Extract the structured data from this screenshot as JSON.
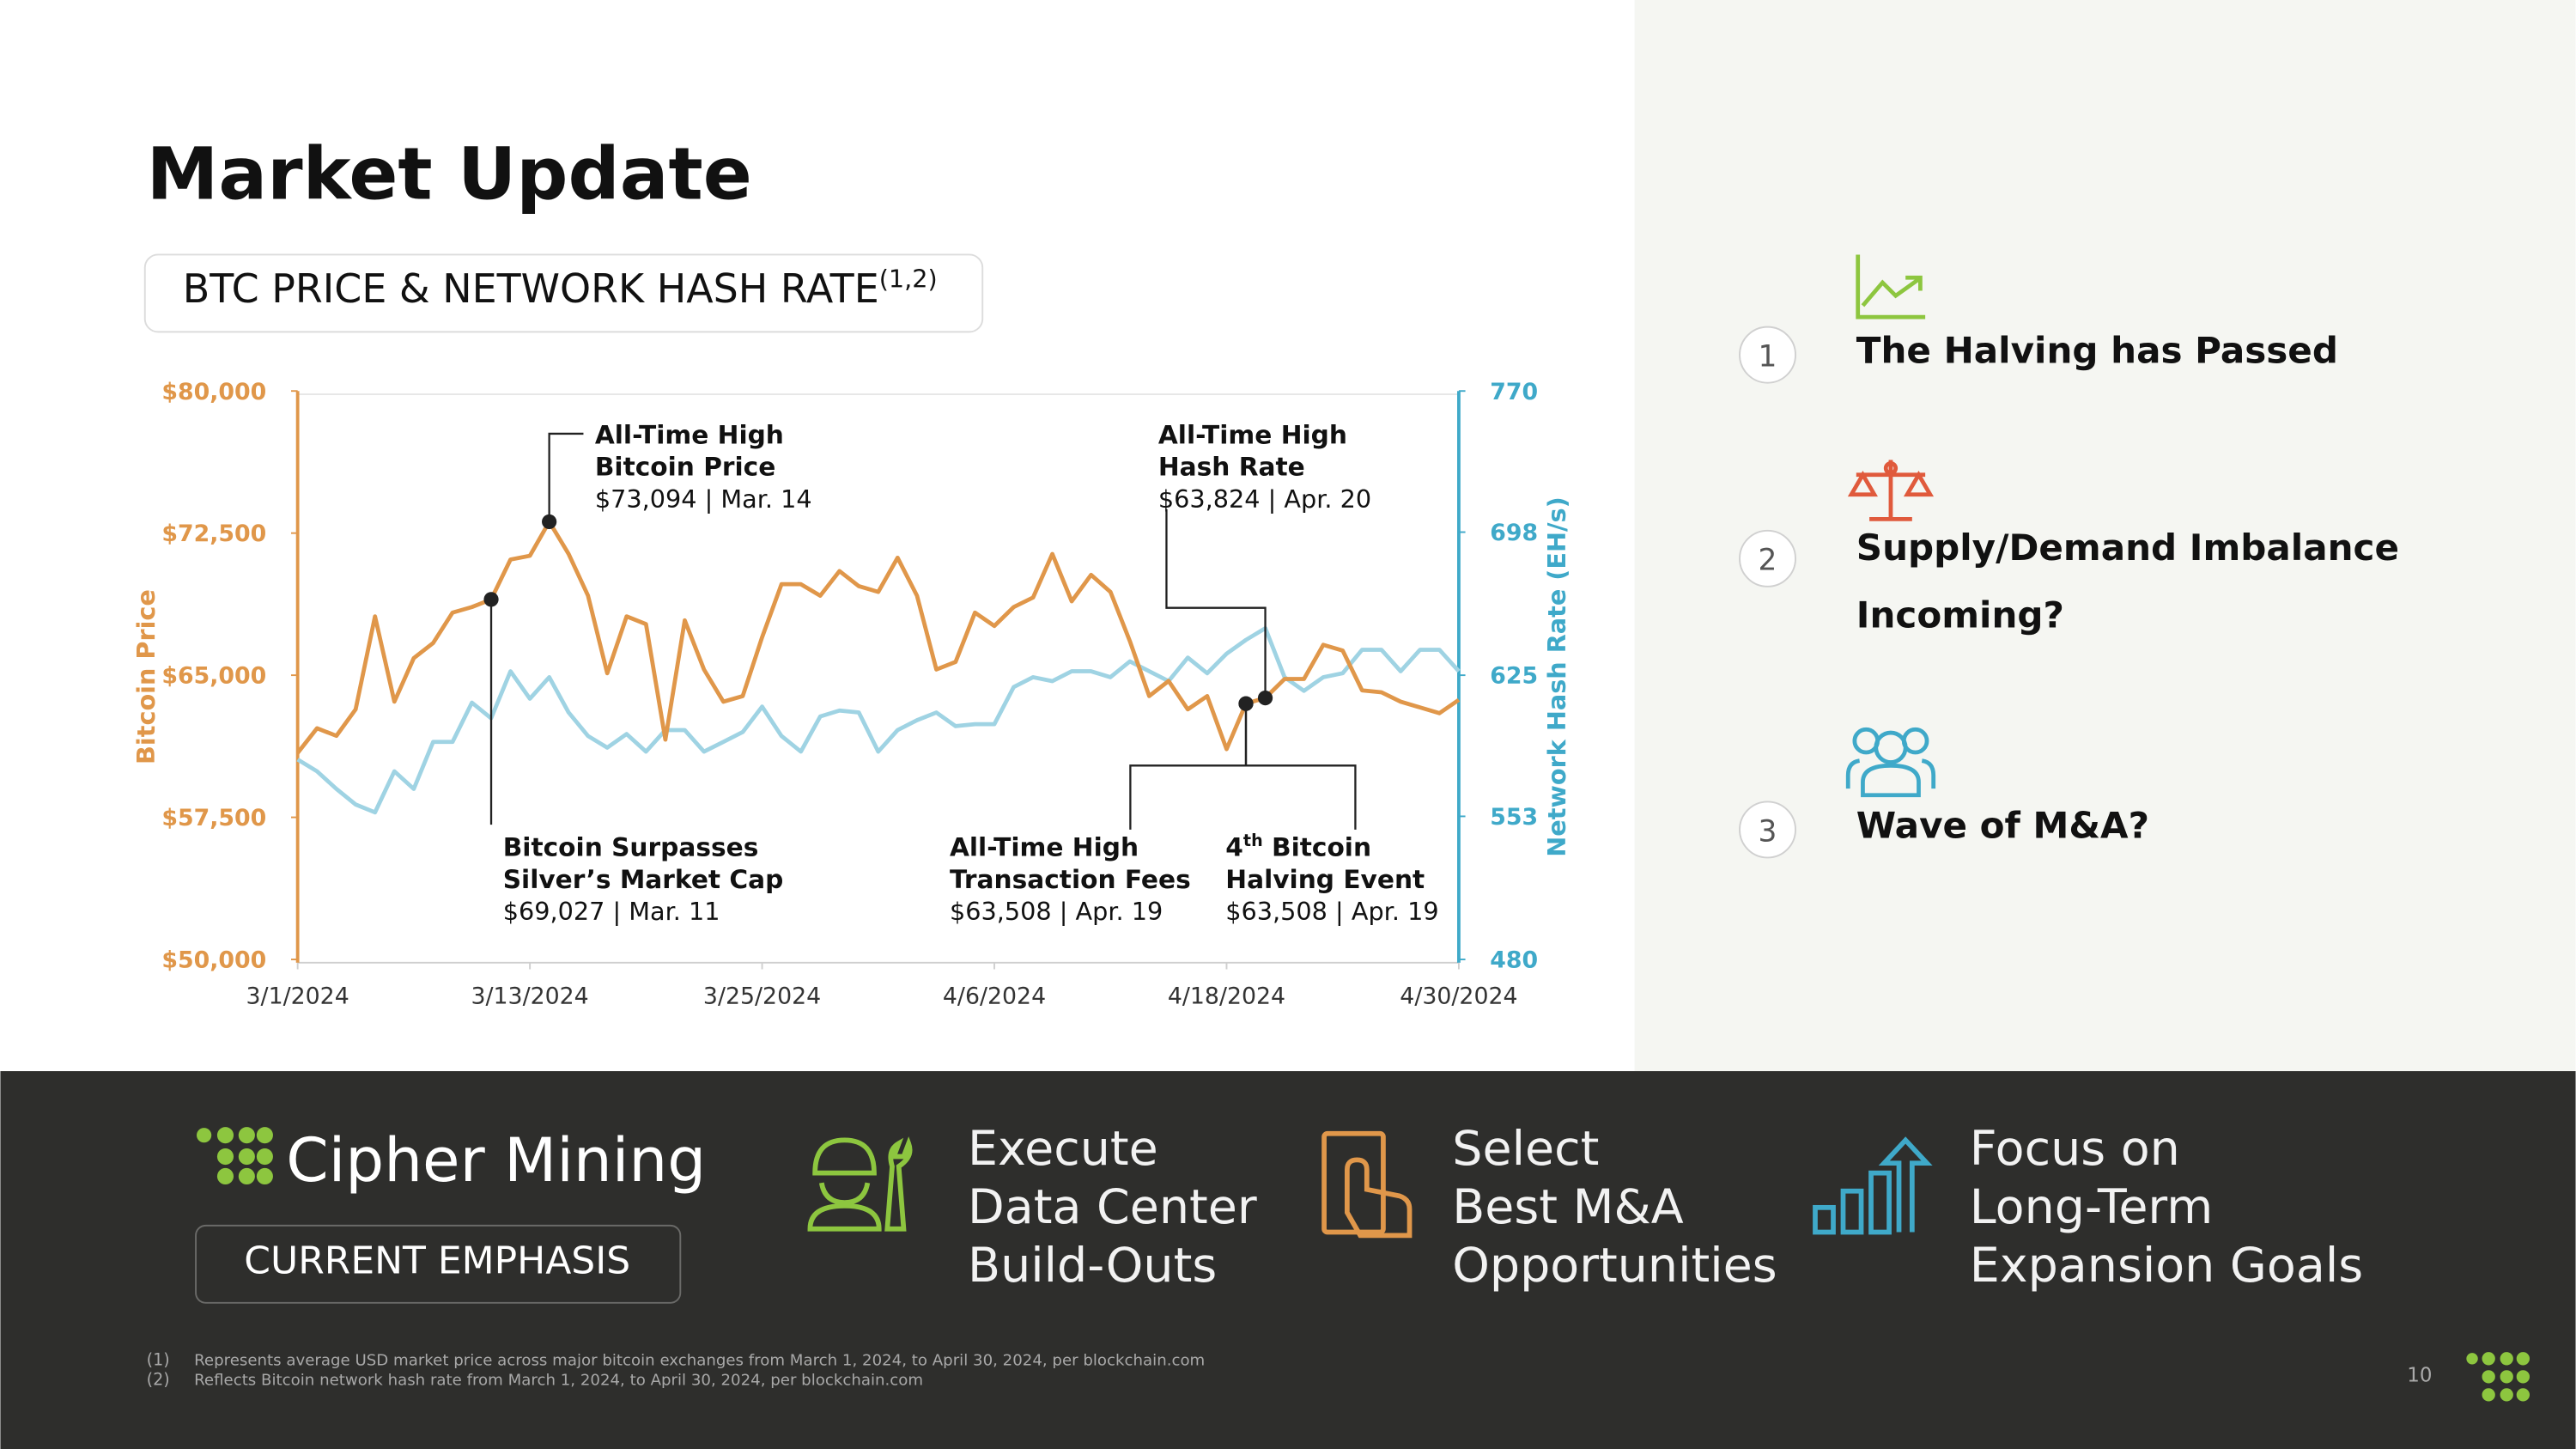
{
  "title": "Market Update",
  "chart_data": {
    "type": "line",
    "subtitle": "BTC PRICE & NETWORK HASH RATE",
    "subtitle_sup": "(1,2)",
    "x": [
      "3/1/2024",
      "3/2/2024",
      "3/3/2024",
      "3/4/2024",
      "3/5/2024",
      "3/6/2024",
      "3/7/2024",
      "3/8/2024",
      "3/9/2024",
      "3/10/2024",
      "3/11/2024",
      "3/12/2024",
      "3/13/2024",
      "3/14/2024",
      "3/15/2024",
      "3/16/2024",
      "3/17/2024",
      "3/18/2024",
      "3/19/2024",
      "3/20/2024",
      "3/21/2024",
      "3/22/2024",
      "3/23/2024",
      "3/24/2024",
      "3/25/2024",
      "3/26/2024",
      "3/27/2024",
      "3/28/2024",
      "3/29/2024",
      "3/30/2024",
      "3/31/2024",
      "4/1/2024",
      "4/2/2024",
      "4/3/2024",
      "4/4/2024",
      "4/5/2024",
      "4/6/2024",
      "4/7/2024",
      "4/8/2024",
      "4/9/2024",
      "4/10/2024",
      "4/11/2024",
      "4/12/2024",
      "4/13/2024",
      "4/14/2024",
      "4/15/2024",
      "4/16/2024",
      "4/17/2024",
      "4/18/2024",
      "4/19/2024",
      "4/20/2024",
      "4/21/2024",
      "4/22/2024",
      "4/23/2024",
      "4/24/2024",
      "4/25/2024",
      "4/26/2024",
      "4/27/2024",
      "4/28/2024",
      "4/29/2024",
      "4/30/2024"
    ],
    "xlim": [
      "3/1/2024",
      "4/30/2024"
    ],
    "xticks": [
      "3/1/2024",
      "3/13/2024",
      "3/25/2024",
      "4/6/2024",
      "4/18/2024",
      "4/30/2024"
    ],
    "ylim": [
      50000,
      80000
    ],
    "yticks": [
      {
        "value": 50000,
        "label": "$50,000"
      },
      {
        "value": 57500,
        "label": "$57,500"
      },
      {
        "value": 65000,
        "label": "$65,000"
      },
      {
        "value": 72500,
        "label": "$72,500"
      },
      {
        "value": 80000,
        "label": "$80,000"
      }
    ],
    "y2lim": [
      480,
      770
    ],
    "y2ticks": [
      480,
      553,
      625,
      698,
      770
    ],
    "series": [
      {
        "name": "Bitcoin Price",
        "color": "#e0974a",
        "values": [
          60900,
          62200,
          61800,
          63200,
          68100,
          63600,
          65900,
          66700,
          68300,
          68600,
          69000,
          71100,
          71300,
          73100,
          71400,
          69200,
          65100,
          68100,
          67700,
          61600,
          67900,
          65300,
          63600,
          63900,
          67000,
          69800,
          69800,
          69200,
          70500,
          69700,
          69400,
          71200,
          69200,
          65300,
          65700,
          68300,
          67600,
          68600,
          69100,
          71400,
          68900,
          70300,
          69400,
          66800,
          63900,
          64700,
          63200,
          63900,
          61100,
          63500,
          63800,
          64800,
          64800,
          66600,
          66300,
          64200,
          64100,
          63600,
          63300,
          63000,
          63700
        ]
      },
      {
        "name": "Network Hash Rate (EH/s)",
        "color": "#9fd3e3",
        "axis": "y2",
        "values": [
          582,
          576,
          567,
          559,
          555,
          576,
          567,
          591,
          591,
          611,
          603,
          627,
          613,
          624,
          606,
          594,
          588,
          595,
          586,
          597,
          597,
          586,
          591,
          596,
          609,
          594,
          586,
          604,
          607,
          606,
          586,
          597,
          602,
          606,
          599,
          600,
          600,
          619,
          624,
          622,
          627,
          627,
          624,
          632,
          627,
          622,
          634,
          626,
          636,
          643,
          649,
          624,
          617,
          624,
          626,
          638,
          638,
          627,
          638,
          638,
          627
        ]
      }
    ],
    "annotations": [
      {
        "x": "3/14/2024",
        "lines": [
          "All-Time High",
          "Bitcoin Price"
        ],
        "detail": "$73,094 | Mar. 14"
      },
      {
        "x": "3/11/2024",
        "lines": [
          "Bitcoin Surpasses",
          "Silver’s Market Cap"
        ],
        "detail": "$69,027 | Mar. 11"
      },
      {
        "x": "4/19/2024",
        "lines": [
          "All-Time High",
          "Transaction Fees"
        ],
        "detail": "$63,508 | Apr. 19"
      },
      {
        "x": "4/19/2024",
        "lines": [
          [
            "4",
            "th",
            " Bitcoin"
          ],
          "Halving Event"
        ],
        "detail": "$63,508 | Apr. 19"
      },
      {
        "x": "4/20/2024",
        "lines": [
          "All-Time High",
          "Hash Rate"
        ],
        "detail": "$63,824 | Apr. 20"
      }
    ]
  },
  "highlights": [
    {
      "number": 1,
      "lines": [
        "The Halving has Passed"
      ]
    },
    {
      "number": 2,
      "lines": [
        "Supply/Demand Imbalance",
        "Incoming?"
      ]
    },
    {
      "number": 3,
      "lines": [
        "Wave of M&A?"
      ]
    }
  ],
  "footer": {
    "brand": "Cipher Mining",
    "emphasis_label": "CURRENT EMPHASIS",
    "emphasis": [
      {
        "lines": [
          "Execute",
          "Data Center",
          "Build-Outs"
        ]
      },
      {
        "lines": [
          "Select",
          "Best M&A",
          "Opportunities"
        ]
      },
      {
        "lines": [
          "Focus on",
          "Long-Term",
          "Expansion Goals"
        ]
      }
    ],
    "footnotes": [
      {
        "marker": "(1)",
        "text": "Represents average USD market price across major bitcoin exchanges from March 1, 2024, to April 30, 2024, per blockchain.com"
      },
      {
        "marker": "(2)",
        "text": "Reflects Bitcoin network hash rate from March 1, 2024, to April 30, 2024, per blockchain.com"
      }
    ],
    "page_number": 10
  }
}
